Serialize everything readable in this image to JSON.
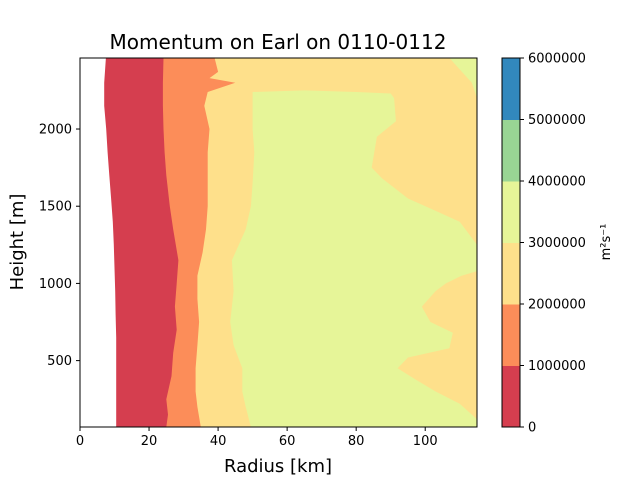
{
  "chart_data": {
    "type": "filled-contour",
    "title": "Momentum on Earl on 0110-0112",
    "xlabel": "Radius [km]",
    "ylabel": "Height [m]",
    "xlim": [
      0,
      115
    ],
    "ylim": [
      70,
      2460
    ],
    "x_ticks": [
      0,
      20,
      40,
      60,
      80,
      100
    ],
    "y_ticks": [
      500,
      1000,
      1500,
      2000
    ],
    "colorbar": {
      "label": "m²s⁻¹",
      "levels": [
        0,
        1000000,
        2000000,
        3000000,
        4000000,
        5000000,
        6000000
      ],
      "tick_labels": [
        "0",
        "1000000",
        "2000000",
        "3000000",
        "4000000",
        "5000000",
        "6000000"
      ],
      "colors": [
        "#d53e4f",
        "#fc8d59",
        "#fee08b",
        "#e6f598",
        "#99d594",
        "#3288bd"
      ]
    },
    "contours": {
      "level_0": [
        [
          7.5,
          2460
        ],
        [
          7.0,
          2300
        ],
        [
          7.0,
          2150
        ],
        [
          7.6,
          2000
        ],
        [
          8.0,
          1850
        ],
        [
          8.5,
          1700
        ],
        [
          9.0,
          1550
        ],
        [
          9.5,
          1400
        ],
        [
          9.8,
          1250
        ],
        [
          10.0,
          1100
        ],
        [
          10.2,
          950
        ],
        [
          10.3,
          800
        ],
        [
          10.5,
          650
        ],
        [
          10.5,
          500
        ],
        [
          10.5,
          350
        ],
        [
          10.5,
          200
        ],
        [
          10.5,
          70
        ]
      ],
      "level_1000000": [
        [
          24.2,
          2460
        ],
        [
          24.0,
          2300
        ],
        [
          24.0,
          2150
        ],
        [
          24.2,
          2000
        ],
        [
          24.5,
          1850
        ],
        [
          25.0,
          1700
        ],
        [
          26.0,
          1500
        ],
        [
          27.0,
          1350
        ],
        [
          28.5,
          1150
        ],
        [
          28.0,
          1000
        ],
        [
          27.5,
          850
        ],
        [
          28.0,
          700
        ],
        [
          27.0,
          550
        ],
        [
          26.5,
          400
        ],
        [
          25.0,
          250
        ],
        [
          25.5,
          150
        ],
        [
          25.0,
          70
        ]
      ],
      "level_2000000": [
        [
          39.0,
          2460
        ],
        [
          40.0,
          2370
        ],
        [
          37.5,
          2330
        ],
        [
          45.0,
          2300
        ],
        [
          37.0,
          2240
        ],
        [
          36.0,
          2150
        ],
        [
          37.5,
          2000
        ],
        [
          37.0,
          1850
        ],
        [
          37.0,
          1700
        ],
        [
          37.0,
          1500
        ],
        [
          36.5,
          1350
        ],
        [
          35.5,
          1200
        ],
        [
          34.0,
          1050
        ],
        [
          34.0,
          900
        ],
        [
          34.5,
          750
        ],
        [
          34.0,
          600
        ],
        [
          33.5,
          450
        ],
        [
          33.5,
          300
        ],
        [
          34.0,
          200
        ],
        [
          35.0,
          70
        ]
      ],
      "level_3000000": [
        [
          50.0,
          2240
        ],
        [
          50.0,
          2000
        ],
        [
          50.5,
          1850
        ],
        [
          50.0,
          1650
        ],
        [
          49.5,
          1500
        ],
        [
          48.0,
          1350
        ],
        [
          44.0,
          1150
        ],
        [
          44.5,
          950
        ],
        [
          43.5,
          750
        ],
        [
          44.5,
          600
        ],
        [
          47.0,
          450
        ],
        [
          47.0,
          300
        ],
        [
          48.0,
          200
        ],
        [
          49.5,
          70
        ],
        [
          115.0,
          70
        ],
        [
          115.0,
          120
        ],
        [
          110.0,
          220
        ],
        [
          103.0,
          300
        ],
        [
          97.0,
          380
        ],
        [
          92.0,
          450
        ],
        [
          95.0,
          520
        ],
        [
          107.0,
          580
        ],
        [
          108.0,
          680
        ],
        [
          101.5,
          750
        ],
        [
          99.0,
          850
        ],
        [
          103.0,
          950
        ],
        [
          106.0,
          1000
        ],
        [
          110.5,
          1050
        ],
        [
          115.0,
          1080
        ],
        [
          115.0,
          1250
        ],
        [
          110.0,
          1400
        ],
        [
          102.0,
          1480
        ],
        [
          95.0,
          1550
        ],
        [
          87.5,
          1680
        ],
        [
          84.5,
          1750
        ],
        [
          86.0,
          1950
        ],
        [
          91.5,
          2050
        ],
        [
          91.0,
          2200
        ],
        [
          90.0,
          2230
        ],
        [
          80.0,
          2240
        ],
        [
          65.0,
          2250
        ],
        [
          50.0,
          2240
        ]
      ],
      "level_3000000_upper_right": [
        [
          107.0,
          2460
        ],
        [
          113.5,
          2300
        ],
        [
          115.0,
          2200
        ],
        [
          115.0,
          2460
        ]
      ]
    }
  }
}
